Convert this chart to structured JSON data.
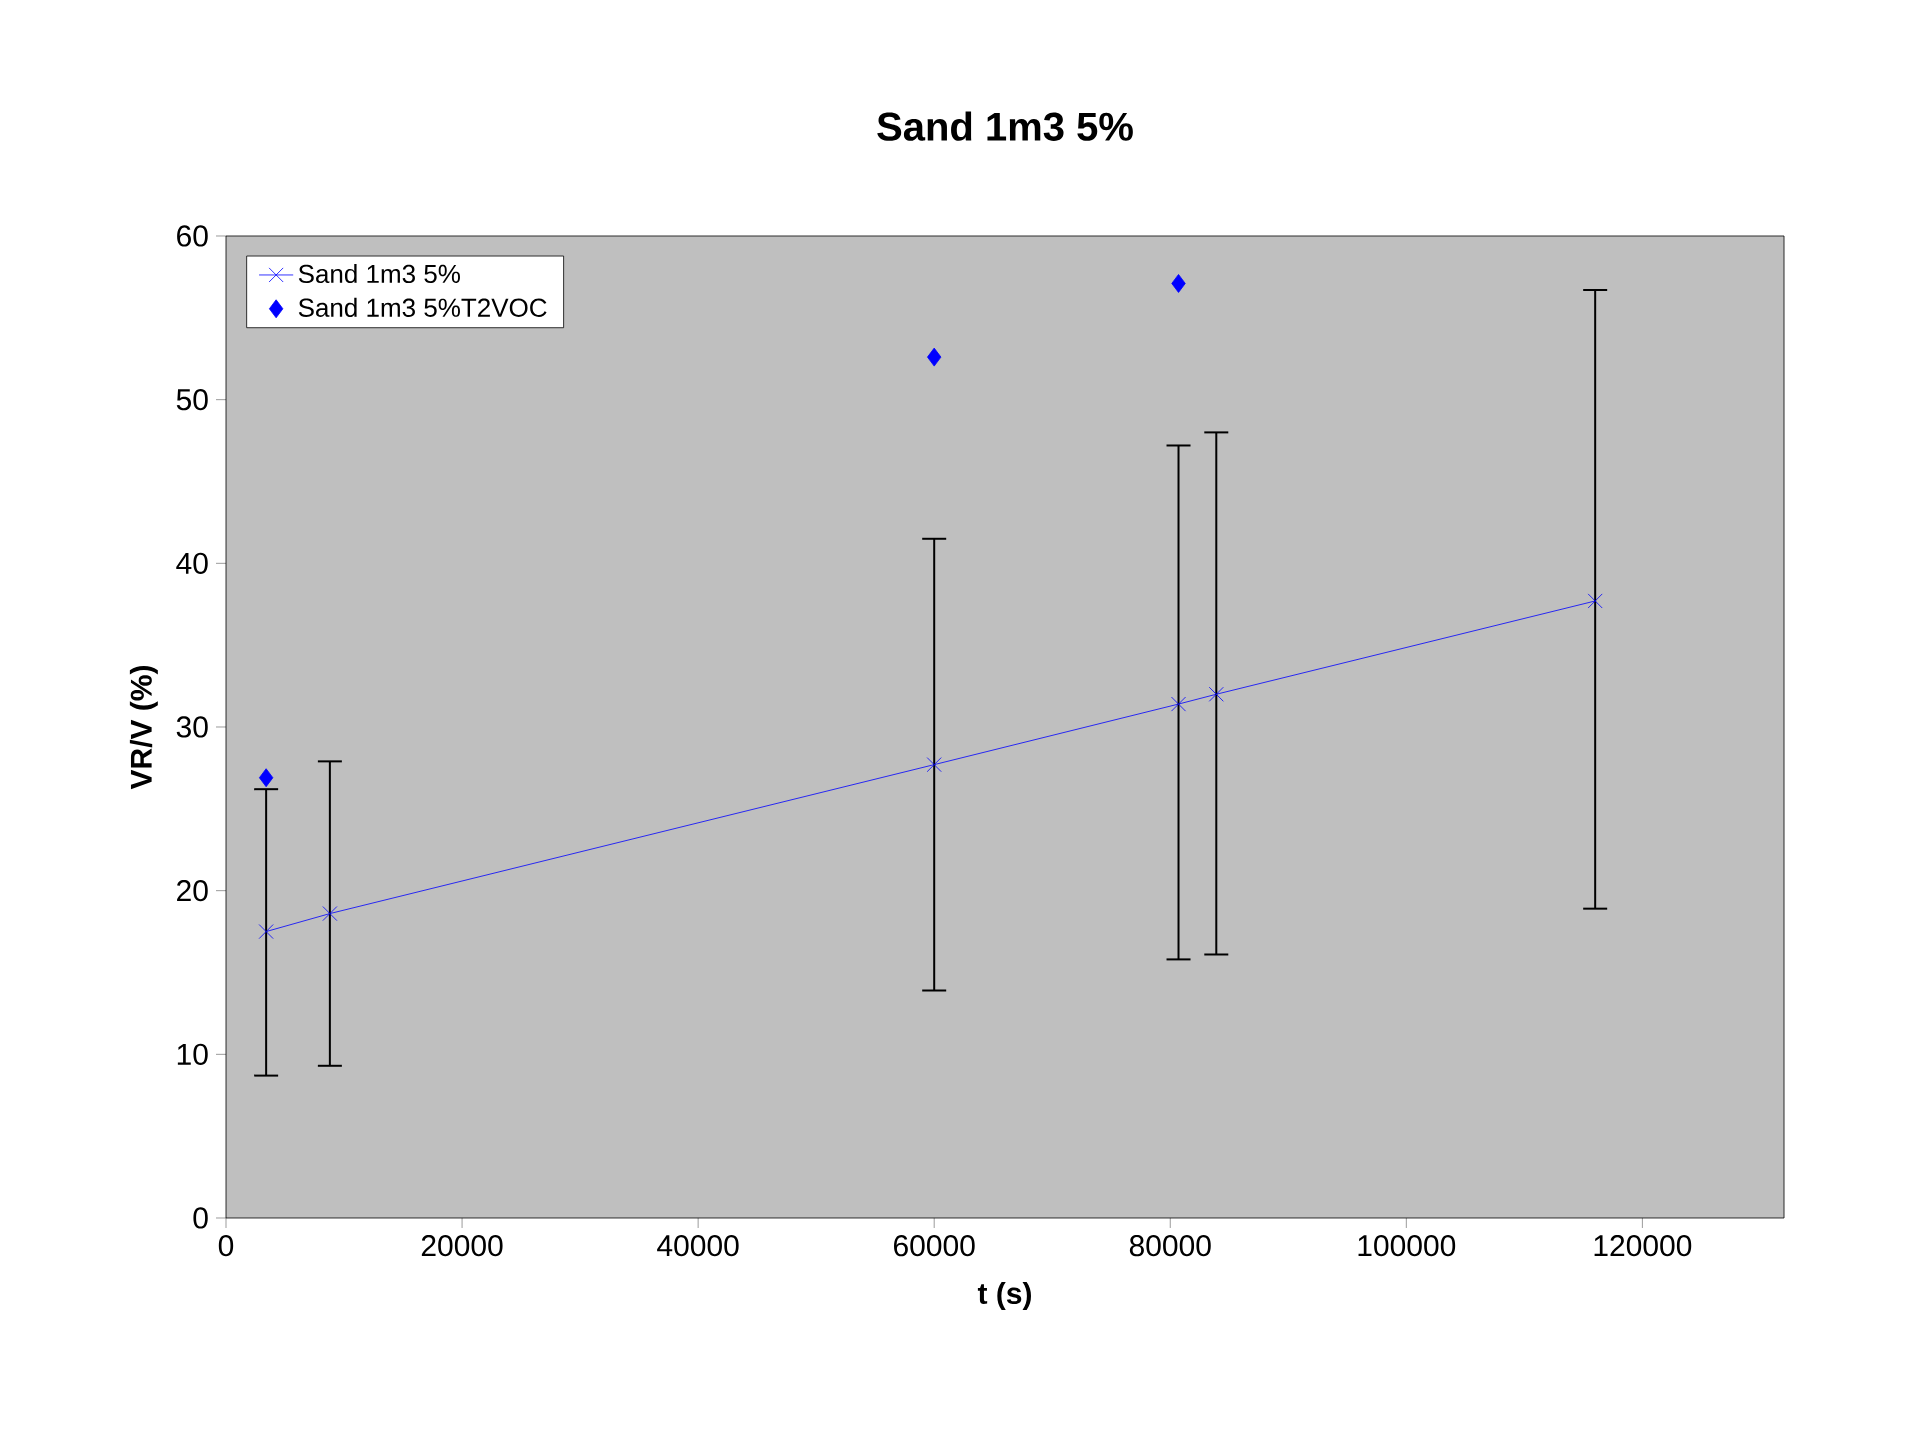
{
  "chart_data": {
    "type": "line",
    "title": "Sand 1m3 5%",
    "xlabel": "t (s)",
    "ylabel": "VR/V (%)",
    "xlim": [
      0,
      132000
    ],
    "xticks": [
      0,
      20000,
      40000,
      60000,
      80000,
      100000,
      120000
    ],
    "ylim": [
      0,
      60
    ],
    "yticks": [
      0,
      10,
      20,
      30,
      40,
      50,
      60
    ],
    "grid": false,
    "legend": "top left",
    "line_style": "solid",
    "series": [
      {
        "name": "Sand 1m3 5%",
        "marker": "cross",
        "color": "#0000ff",
        "x": [
          3400,
          8800,
          60000,
          80700,
          83900,
          116000
        ],
        "values": [
          17.5,
          18.6,
          27.7,
          31.4,
          32.0,
          37.7
        ],
        "errors": [
          [
            8.7,
            26.2
          ],
          [
            9.3,
            27.9
          ],
          [
            13.9,
            41.5
          ],
          [
            15.8,
            47.2
          ],
          [
            16.1,
            48.0
          ],
          [
            18.9,
            56.7
          ]
        ]
      },
      {
        "name": "Sand 1m3 5%T2VOC",
        "type": "scatter",
        "marker": "diamond",
        "color": "#0000ff",
        "x": [
          3400,
          60000,
          80700
        ],
        "values": [
          26.9,
          52.6,
          57.1
        ]
      }
    ]
  }
}
